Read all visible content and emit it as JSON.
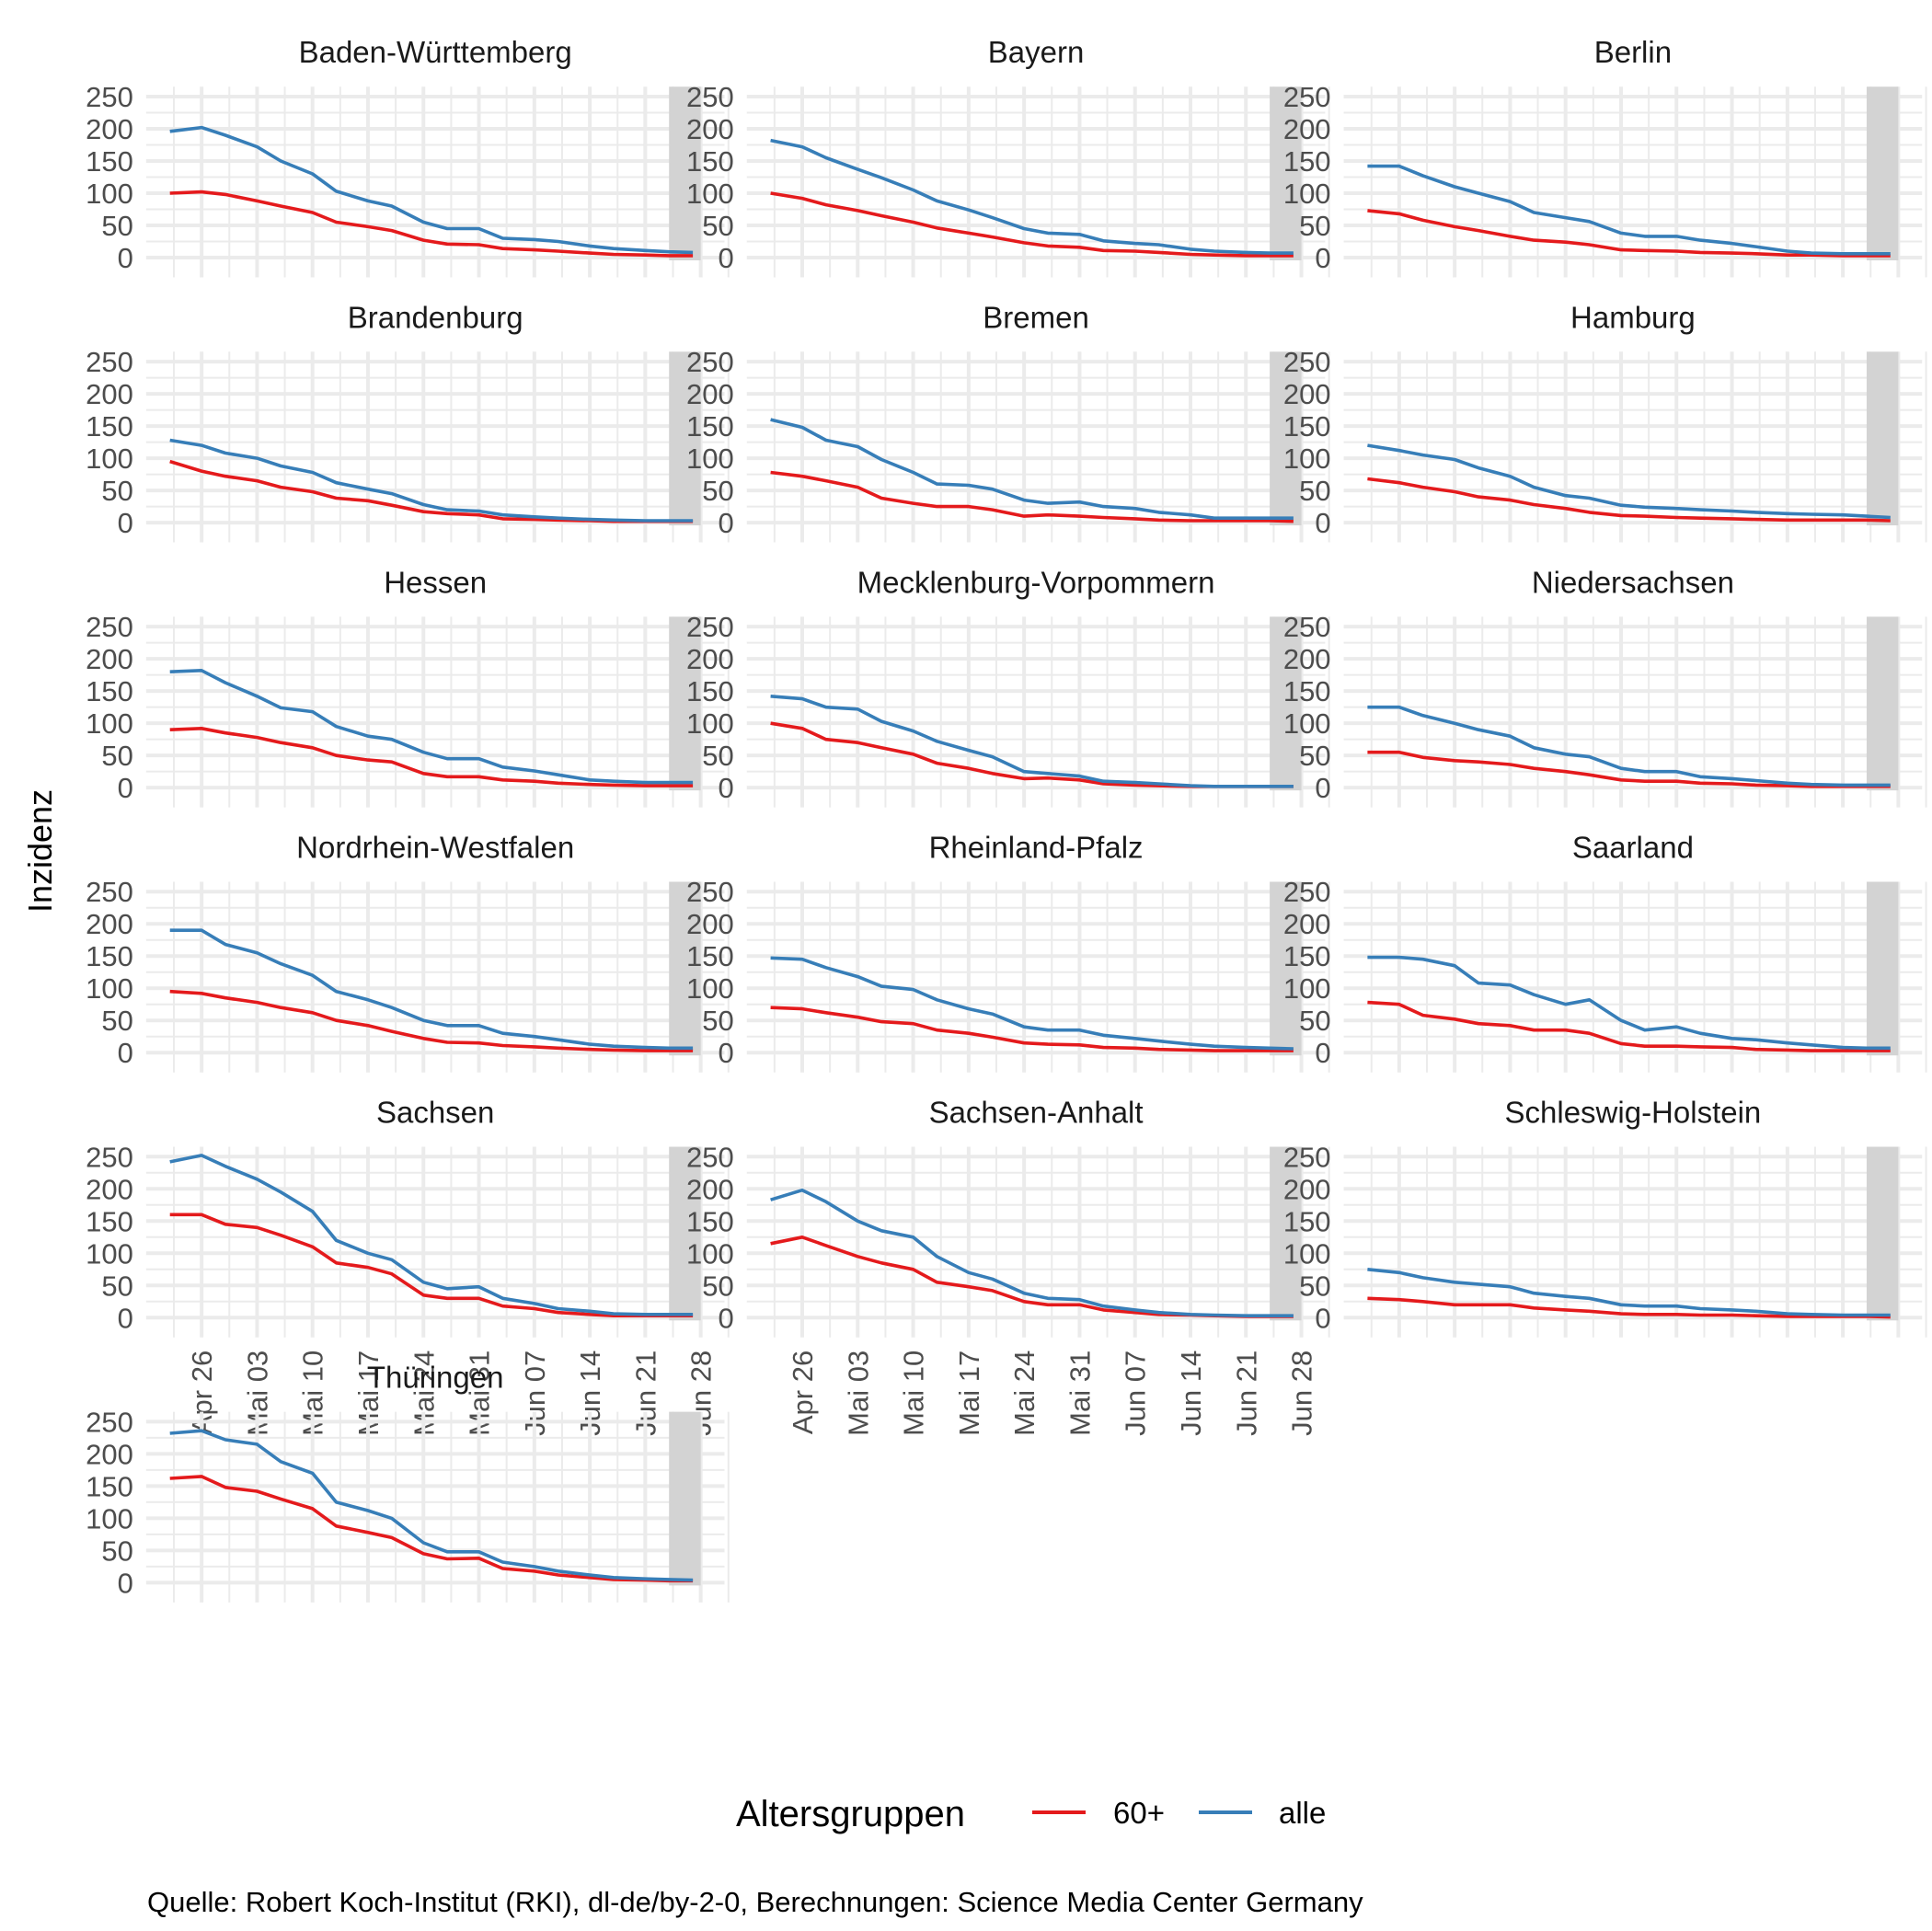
{
  "chart_data": {
    "type": "line",
    "title": "",
    "xlabel": "",
    "ylabel": "Inzidenz",
    "ylim": [
      0,
      250
    ],
    "yticks": [
      0,
      50,
      100,
      150,
      200,
      250
    ],
    "x_start": "2021-04-22",
    "x_end": "2021-06-27",
    "xlim": [
      "2021-04-19",
      "2021-07-01"
    ],
    "xticks": [
      "Apr 26",
      "Mai 03",
      "Mai 10",
      "Mai 17",
      "Mai 24",
      "Mai 31",
      "Jun 07",
      "Jun 14",
      "Jun 21",
      "Jun 28"
    ],
    "xtick_dates": [
      "2021-04-26",
      "2021-05-03",
      "2021-05-10",
      "2021-05-17",
      "2021-05-24",
      "2021-05-31",
      "2021-06-07",
      "2021-06-14",
      "2021-06-21",
      "2021-06-28"
    ],
    "shaded_region": [
      "2021-06-24",
      "2021-06-28"
    ],
    "grid": true,
    "legend": {
      "title": "Altersgruppen",
      "position": "bottom",
      "entries": [
        "60+",
        "alle"
      ]
    },
    "colors": {
      "60+": "#e41a1c",
      "alle": "#377eb8",
      "shade": "#d3d3d3",
      "grid": "#ebebeb"
    },
    "sample_dates": [
      "2021-04-22",
      "2021-04-26",
      "2021-04-29",
      "2021-05-03",
      "2021-05-06",
      "2021-05-10",
      "2021-05-13",
      "2021-05-17",
      "2021-05-20",
      "2021-05-24",
      "2021-05-27",
      "2021-05-31",
      "2021-06-03",
      "2021-06-07",
      "2021-06-10",
      "2021-06-14",
      "2021-06-17",
      "2021-06-21",
      "2021-06-24",
      "2021-06-27"
    ],
    "panels": [
      {
        "name": "Baden-Württemberg",
        "series": [
          {
            "name": "60+",
            "values": [
              100,
              102,
              98,
              88,
              80,
              70,
              55,
              48,
              42,
              27,
              21,
              20,
              14,
              12,
              10,
              7,
              5,
              4,
              3,
              3
            ]
          },
          {
            "name": "alle",
            "values": [
              196,
              202,
              190,
              172,
              150,
              130,
              103,
              88,
              80,
              55,
              45,
              45,
              30,
              28,
              25,
              18,
              14,
              11,
              9,
              8
            ]
          }
        ]
      },
      {
        "name": "Bayern",
        "series": [
          {
            "name": "60+",
            "values": [
              100,
              92,
              82,
              73,
              65,
              55,
              46,
              38,
              32,
              23,
              18,
              16,
              11,
              10,
              8,
              5,
              4,
              3,
              3,
              3
            ]
          },
          {
            "name": "alle",
            "values": [
              182,
              172,
              155,
              137,
              124,
              105,
              88,
              74,
              62,
              45,
              38,
              36,
              26,
              22,
              20,
              13,
              10,
              8,
              7,
              7
            ]
          }
        ]
      },
      {
        "name": "Berlin",
        "series": [
          {
            "name": "60+",
            "values": [
              73,
              68,
              58,
              48,
              42,
              33,
              27,
              24,
              20,
              12,
              11,
              10,
              8,
              7,
              6,
              4,
              4,
              3,
              3,
              3
            ]
          },
          {
            "name": "alle",
            "values": [
              142,
              142,
              127,
              110,
              100,
              87,
              70,
              62,
              56,
              38,
              33,
              33,
              27,
              22,
              17,
              10,
              7,
              6,
              6,
              6
            ]
          }
        ]
      },
      {
        "name": "Brandenburg",
        "series": [
          {
            "name": "60+",
            "values": [
              95,
              80,
              72,
              65,
              55,
              48,
              38,
              34,
              27,
              17,
              14,
              12,
              6,
              5,
              4,
              3,
              2,
              2,
              2,
              2
            ]
          },
          {
            "name": "alle",
            "values": [
              128,
              120,
              108,
              100,
              88,
              78,
              62,
              52,
              45,
              28,
              20,
              18,
              12,
              9,
              7,
              5,
              4,
              3,
              3,
              3
            ]
          }
        ]
      },
      {
        "name": "Bremen",
        "series": [
          {
            "name": "60+",
            "values": [
              78,
              72,
              65,
              55,
              38,
              30,
              25,
              25,
              20,
              10,
              12,
              10,
              8,
              6,
              4,
              3,
              3,
              3,
              3,
              2
            ]
          },
          {
            "name": "alle",
            "values": [
              160,
              148,
              128,
              118,
              98,
              78,
              60,
              58,
              52,
              35,
              30,
              32,
              25,
              22,
              16,
              12,
              7,
              7,
              7,
              7
            ]
          }
        ]
      },
      {
        "name": "Hamburg",
        "series": [
          {
            "name": "60+",
            "values": [
              68,
              62,
              55,
              48,
              40,
              35,
              28,
              22,
              16,
              11,
              10,
              8,
              7,
              6,
              5,
              4,
              4,
              4,
              4,
              3
            ]
          },
          {
            "name": "alle",
            "values": [
              120,
              112,
              105,
              98,
              85,
              72,
              55,
              42,
              38,
              27,
              24,
              22,
              20,
              18,
              16,
              14,
              13,
              12,
              10,
              8
            ]
          }
        ]
      },
      {
        "name": "Hessen",
        "series": [
          {
            "name": "60+",
            "values": [
              90,
              92,
              85,
              78,
              70,
              62,
              50,
              43,
              40,
              22,
              17,
              17,
              12,
              10,
              7,
              5,
              4,
              3,
              3,
              3
            ]
          },
          {
            "name": "alle",
            "values": [
              180,
              182,
              163,
              142,
              124,
              118,
              95,
              80,
              75,
              55,
              45,
              45,
              32,
              26,
              20,
              12,
              10,
              8,
              8,
              8
            ]
          }
        ]
      },
      {
        "name": "Mecklenburg-Vorpommern",
        "series": [
          {
            "name": "60+",
            "values": [
              100,
              92,
              75,
              70,
              62,
              52,
              38,
              30,
              22,
              14,
              15,
              12,
              6,
              4,
              3,
              2,
              2,
              2,
              2,
              2
            ]
          },
          {
            "name": "alle",
            "values": [
              142,
              138,
              125,
              122,
              103,
              88,
              72,
              58,
              48,
              25,
              22,
              18,
              10,
              8,
              6,
              3,
              2,
              2,
              2,
              2
            ]
          }
        ]
      },
      {
        "name": "Niedersachsen",
        "series": [
          {
            "name": "60+",
            "values": [
              55,
              55,
              47,
              42,
              40,
              36,
              30,
              25,
              20,
              12,
              10,
              10,
              7,
              6,
              4,
              3,
              2,
              2,
              2,
              2
            ]
          },
          {
            "name": "alle",
            "values": [
              125,
              125,
              112,
              100,
              90,
              80,
              62,
              52,
              48,
              30,
              25,
              25,
              17,
              14,
              11,
              7,
              5,
              4,
              4,
              4
            ]
          }
        ]
      },
      {
        "name": "Nordrhein-Westfalen",
        "series": [
          {
            "name": "60+",
            "values": [
              95,
              92,
              85,
              78,
              70,
              62,
              50,
              42,
              33,
              22,
              16,
              15,
              11,
              9,
              7,
              5,
              4,
              3,
              3,
              3
            ]
          },
          {
            "name": "alle",
            "values": [
              190,
              190,
              168,
              155,
              138,
              120,
              95,
              82,
              70,
              50,
              42,
              42,
              30,
              25,
              20,
              13,
              10,
              8,
              7,
              7
            ]
          }
        ]
      },
      {
        "name": "Rheinland-Pfalz",
        "series": [
          {
            "name": "60+",
            "values": [
              70,
              68,
              62,
              55,
              48,
              45,
              35,
              30,
              24,
              15,
              13,
              12,
              8,
              7,
              5,
              4,
              3,
              3,
              3,
              3
            ]
          },
          {
            "name": "alle",
            "values": [
              147,
              145,
              132,
              118,
              103,
              98,
              82,
              68,
              60,
              40,
              35,
              35,
              27,
              22,
              18,
              13,
              10,
              8,
              7,
              6
            ]
          }
        ]
      },
      {
        "name": "Saarland",
        "series": [
          {
            "name": "60+",
            "values": [
              78,
              75,
              58,
              52,
              45,
              42,
              35,
              35,
              30,
              14,
              10,
              10,
              9,
              8,
              5,
              4,
              3,
              3,
              3,
              3
            ]
          },
          {
            "name": "alle",
            "values": [
              148,
              148,
              145,
              135,
              108,
              105,
              90,
              75,
              82,
              50,
              35,
              40,
              30,
              22,
              20,
              15,
              12,
              8,
              7,
              7
            ]
          }
        ]
      },
      {
        "name": "Sachsen",
        "series": [
          {
            "name": "60+",
            "values": [
              160,
              160,
              145,
              140,
              128,
              110,
              85,
              78,
              68,
              35,
              30,
              30,
              18,
              14,
              8,
              5,
              3,
              3,
              3,
              3
            ]
          },
          {
            "name": "alle",
            "values": [
              242,
              252,
              235,
              215,
              195,
              165,
              120,
              100,
              90,
              55,
              45,
              48,
              30,
              22,
              14,
              10,
              6,
              5,
              5,
              5
            ]
          }
        ]
      },
      {
        "name": "Sachsen-Anhalt",
        "series": [
          {
            "name": "60+",
            "values": [
              115,
              125,
              112,
              95,
              85,
              75,
              55,
              48,
              42,
              25,
              20,
              20,
              12,
              8,
              5,
              4,
              3,
              2,
              2,
              2
            ]
          },
          {
            "name": "alle",
            "values": [
              183,
              198,
              180,
              150,
              135,
              125,
              95,
              70,
              60,
              38,
              30,
              28,
              18,
              12,
              8,
              5,
              4,
              3,
              3,
              3
            ]
          }
        ]
      },
      {
        "name": "Schleswig-Holstein",
        "series": [
          {
            "name": "60+",
            "values": [
              30,
              28,
              25,
              20,
              20,
              20,
              15,
              12,
              10,
              6,
              5,
              5,
              4,
              4,
              3,
              2,
              2,
              2,
              2,
              1
            ]
          },
          {
            "name": "alle",
            "values": [
              75,
              70,
              62,
              55,
              52,
              48,
              38,
              33,
              30,
              20,
              18,
              18,
              14,
              12,
              10,
              6,
              5,
              4,
              4,
              4
            ]
          }
        ]
      },
      {
        "name": "Thüringen",
        "series": [
          {
            "name": "60+",
            "values": [
              162,
              165,
              148,
              142,
              130,
              115,
              88,
              78,
              70,
              45,
              37,
              38,
              22,
              18,
              12,
              8,
              5,
              4,
              3,
              3
            ]
          },
          {
            "name": "alle",
            "values": [
              232,
              236,
              222,
              215,
              188,
              170,
              125,
              112,
              100,
              62,
              48,
              48,
              32,
              25,
              18,
              12,
              8,
              6,
              5,
              4
            ]
          }
        ]
      }
    ]
  },
  "caption": "Quelle: Robert Koch-Institut (RKI), dl-de/by-2-0, Berechnungen: Science Media Center Germany"
}
